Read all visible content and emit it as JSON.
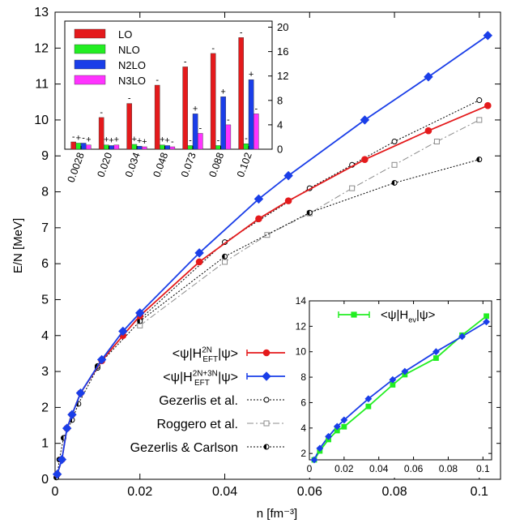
{
  "colors": {
    "red": "#e41a1c",
    "blue": "#1a3ee8",
    "green": "#22ee22",
    "gray": "#8c8c8c",
    "magenta": "#ff33ff",
    "black": "#000000"
  },
  "chart_data": [
    {
      "type": "line",
      "xlabel": "n [fm⁻³]",
      "ylabel": "E/N [MeV]",
      "xlim": [
        0,
        0.105
      ],
      "ylim": [
        0,
        13
      ],
      "xticks": [
        "0",
        "0.02",
        "0.04",
        "0.06",
        "0.08",
        "0.1"
      ],
      "yticks": [
        "0",
        "1",
        "2",
        "3",
        "4",
        "5",
        "6",
        "7",
        "8",
        "9",
        "10",
        "11",
        "12",
        "13"
      ],
      "legend_placement": "lower-left",
      "series": [
        {
          "name": "<ψ|H₂N EFT|ψ>",
          "label_main": "<ψ|H",
          "label_sup": "2N",
          "label_sub": "EFT",
          "label_end": "|ψ>",
          "color": "#e41a1c",
          "marker": "circle",
          "points": [
            [
              0.0005,
              0.14
            ],
            [
              0.0016,
              0.55
            ],
            [
              0.0028,
              1.42
            ],
            [
              0.004,
              1.8
            ],
            [
              0.006,
              2.4
            ],
            [
              0.011,
              3.3
            ],
            [
              0.016,
              4.0
            ],
            [
              0.02,
              4.55
            ],
            [
              0.034,
              6.05
            ],
            [
              0.048,
              7.25
            ],
            [
              0.055,
              7.75
            ],
            [
              0.073,
              8.9
            ],
            [
              0.088,
              9.7
            ],
            [
              0.102,
              10.4
            ]
          ]
        },
        {
          "name": "<ψ|H 2N+3N EFT|ψ>",
          "label_main": "<ψ|H",
          "label_sup": "2N+3N",
          "label_sub": "EFT",
          "label_end": "|ψ>",
          "color": "#1a3ee8",
          "marker": "diamond",
          "points": [
            [
              0.0005,
              0.14
            ],
            [
              0.0016,
              0.55
            ],
            [
              0.0028,
              1.42
            ],
            [
              0.004,
              1.8
            ],
            [
              0.006,
              2.4
            ],
            [
              0.011,
              3.33
            ],
            [
              0.016,
              4.12
            ],
            [
              0.02,
              4.63
            ],
            [
              0.034,
              6.3
            ],
            [
              0.048,
              7.8
            ],
            [
              0.055,
              8.45
            ],
            [
              0.073,
              10.0
            ],
            [
              0.088,
              11.2
            ],
            [
              0.102,
              12.35
            ]
          ]
        },
        {
          "name": "Gezerlis et al.",
          "color": "#000000",
          "marker": "open-circle",
          "dash": "2,2",
          "points": [
            [
              0.02,
              4.45
            ],
            [
              0.04,
              6.6
            ],
            [
              0.06,
              8.1
            ],
            [
              0.07,
              8.75
            ],
            [
              0.08,
              9.4
            ],
            [
              0.1,
              10.55
            ]
          ]
        },
        {
          "name": "Roggero et al.",
          "color": "#8c8c8c",
          "marker": "open-square",
          "dash": "8,3,2,3",
          "points": [
            [
              0.02,
              4.28
            ],
            [
              0.04,
              6.05
            ],
            [
              0.05,
              6.8
            ],
            [
              0.06,
              7.4
            ],
            [
              0.07,
              8.1
            ],
            [
              0.08,
              8.75
            ],
            [
              0.09,
              9.4
            ],
            [
              0.1,
              10.0
            ]
          ]
        },
        {
          "name": "Gezerlis & Carlson",
          "color": "#000000",
          "marker": "half-circle",
          "dash": "2,2",
          "points": [
            [
              0.0003,
              0.05
            ],
            [
              0.0006,
              0.15
            ],
            [
              0.001,
              0.55
            ],
            [
              0.002,
              1.15
            ],
            [
              0.004,
              1.65
            ],
            [
              0.0055,
              2.1
            ],
            [
              0.01,
              3.1
            ],
            [
              0.01,
              3.15
            ],
            [
              0.02,
              4.4
            ],
            [
              0.04,
              6.2
            ],
            [
              0.06,
              7.42
            ],
            [
              0.08,
              8.25
            ],
            [
              0.1,
              8.9
            ]
          ]
        }
      ]
    },
    {
      "type": "bar",
      "categories": [
        "0.0028",
        "0.020",
        "0.034",
        "0.048",
        "0.073",
        "0.088",
        "0.102"
      ],
      "ylim": [
        0,
        21
      ],
      "yticks": [
        "0",
        "4",
        "8",
        "12",
        "16",
        "20"
      ],
      "legend_placement": "top-left",
      "series": [
        {
          "name": "LO",
          "color": "#e41a1c",
          "values": [
            1.2,
            5.2,
            7.5,
            10.5,
            13.5,
            15.7,
            18.3
          ],
          "signs": [
            "-",
            "-",
            "-",
            "-",
            "-",
            "-",
            "-"
          ]
        },
        {
          "name": "NLO",
          "color": "#22ee22",
          "values": [
            1.0,
            0.7,
            0.8,
            0.7,
            0.6,
            0.6,
            0.9
          ],
          "signs": [
            "+",
            "+",
            "+",
            "+",
            "-",
            "-",
            "-"
          ]
        },
        {
          "name": "N2LO",
          "color": "#1a3ee8",
          "values": [
            1.0,
            0.6,
            0.5,
            0.6,
            5.8,
            8.6,
            11.4
          ],
          "signs": [
            "-",
            "+",
            "+",
            "+",
            "+",
            "+",
            "+"
          ]
        },
        {
          "name": "N3LO",
          "color": "#ff33ff",
          "values": [
            0.7,
            0.7,
            0.4,
            0.4,
            2.6,
            4.0,
            5.8
          ],
          "signs": [
            "+",
            "+",
            "+",
            "-",
            "-",
            "-",
            "-"
          ]
        }
      ]
    },
    {
      "type": "line",
      "xlim": [
        0,
        0.105
      ],
      "ylim": [
        1.5,
        14
      ],
      "xticks": [
        "0",
        "0.02",
        "0.04",
        "0.06",
        "0.08",
        "0.1"
      ],
      "yticks": [
        "2",
        "4",
        "6",
        "8",
        "10",
        "12",
        "14"
      ],
      "legend_placement": "top-right",
      "series": [
        {
          "name": "<ψ|H ev|ψ>",
          "label_main": "<ψ|H",
          "label_sub": "ev",
          "label_end": "|ψ>",
          "color": "#22ee22",
          "marker": "square",
          "points": [
            [
              0.0028,
              1.5
            ],
            [
              0.006,
              2.2
            ],
            [
              0.011,
              3.1
            ],
            [
              0.016,
              3.8
            ],
            [
              0.02,
              4.1
            ],
            [
              0.034,
              5.7
            ],
            [
              0.048,
              7.4
            ],
            [
              0.055,
              8.2
            ],
            [
              0.073,
              9.5
            ],
            [
              0.088,
              11.3
            ],
            [
              0.102,
              12.8
            ]
          ]
        },
        {
          "name": "",
          "color": "#1a3ee8",
          "marker": "diamond",
          "points": [
            [
              0.0028,
              1.5
            ],
            [
              0.006,
              2.4
            ],
            [
              0.011,
              3.33
            ],
            [
              0.016,
              4.12
            ],
            [
              0.02,
              4.63
            ],
            [
              0.034,
              6.3
            ],
            [
              0.048,
              7.8
            ],
            [
              0.055,
              8.45
            ],
            [
              0.073,
              10.0
            ],
            [
              0.088,
              11.2
            ],
            [
              0.102,
              12.35
            ]
          ]
        }
      ]
    }
  ]
}
